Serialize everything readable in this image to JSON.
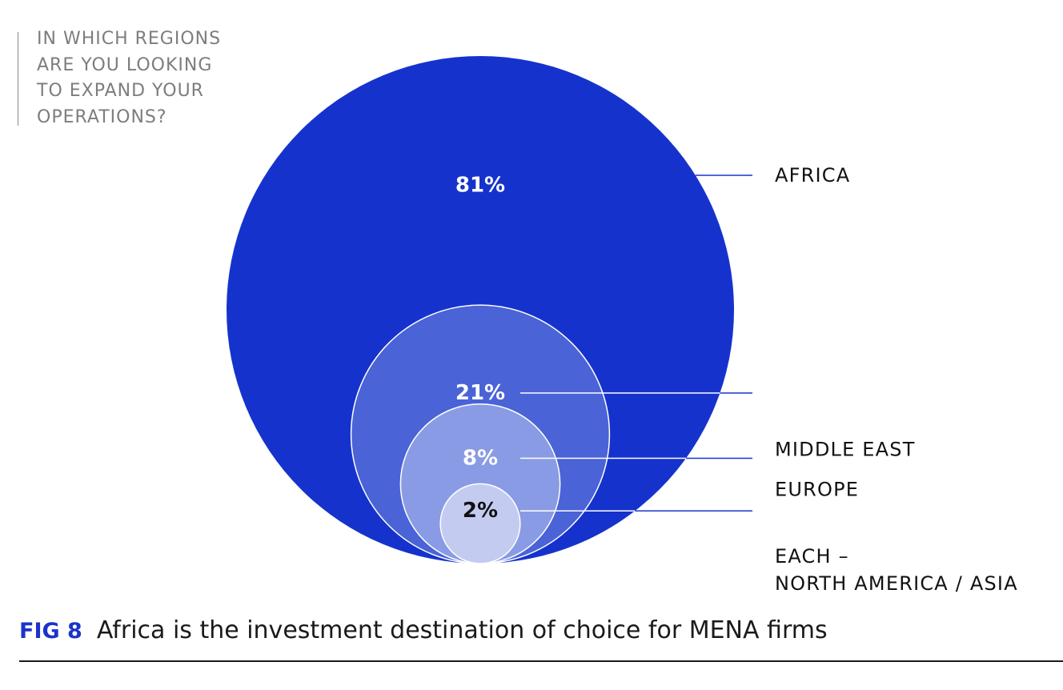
{
  "question": "IN WHICH REGIONS\nARE YOU LOOKING\nTO EXPAND YOUR\nOPERATIONS?",
  "caption": {
    "figure_number": "FIG 8",
    "text": "Africa is the investment destination of choice for MENA firms"
  },
  "chart_data": {
    "type": "nested-bubble",
    "title": "",
    "categories": [
      "AFRICA",
      "MIDDLE EAST",
      "EUROPE",
      "EACH – NORTH AMERICA / ASIA"
    ],
    "values": [
      81,
      21,
      8,
      2
    ],
    "unit": "%",
    "value_labels": [
      "81%",
      "21%",
      "8%",
      "2%"
    ],
    "legend_labels": [
      [
        "AFRICA"
      ],
      [
        "MIDDLE EAST"
      ],
      [
        "EUROPE"
      ],
      [
        "EACH –",
        "NORTH AMERICA / ASIA"
      ]
    ],
    "colors": [
      "#1533cc",
      "#4a63d6",
      "#8a9be5",
      "#c4cbf1"
    ],
    "value_label_colors": [
      "#ffffff",
      "#ffffff",
      "#ffffff",
      "#111111"
    ],
    "leader_color": "#1a33cc",
    "legend_placement": "right"
  }
}
